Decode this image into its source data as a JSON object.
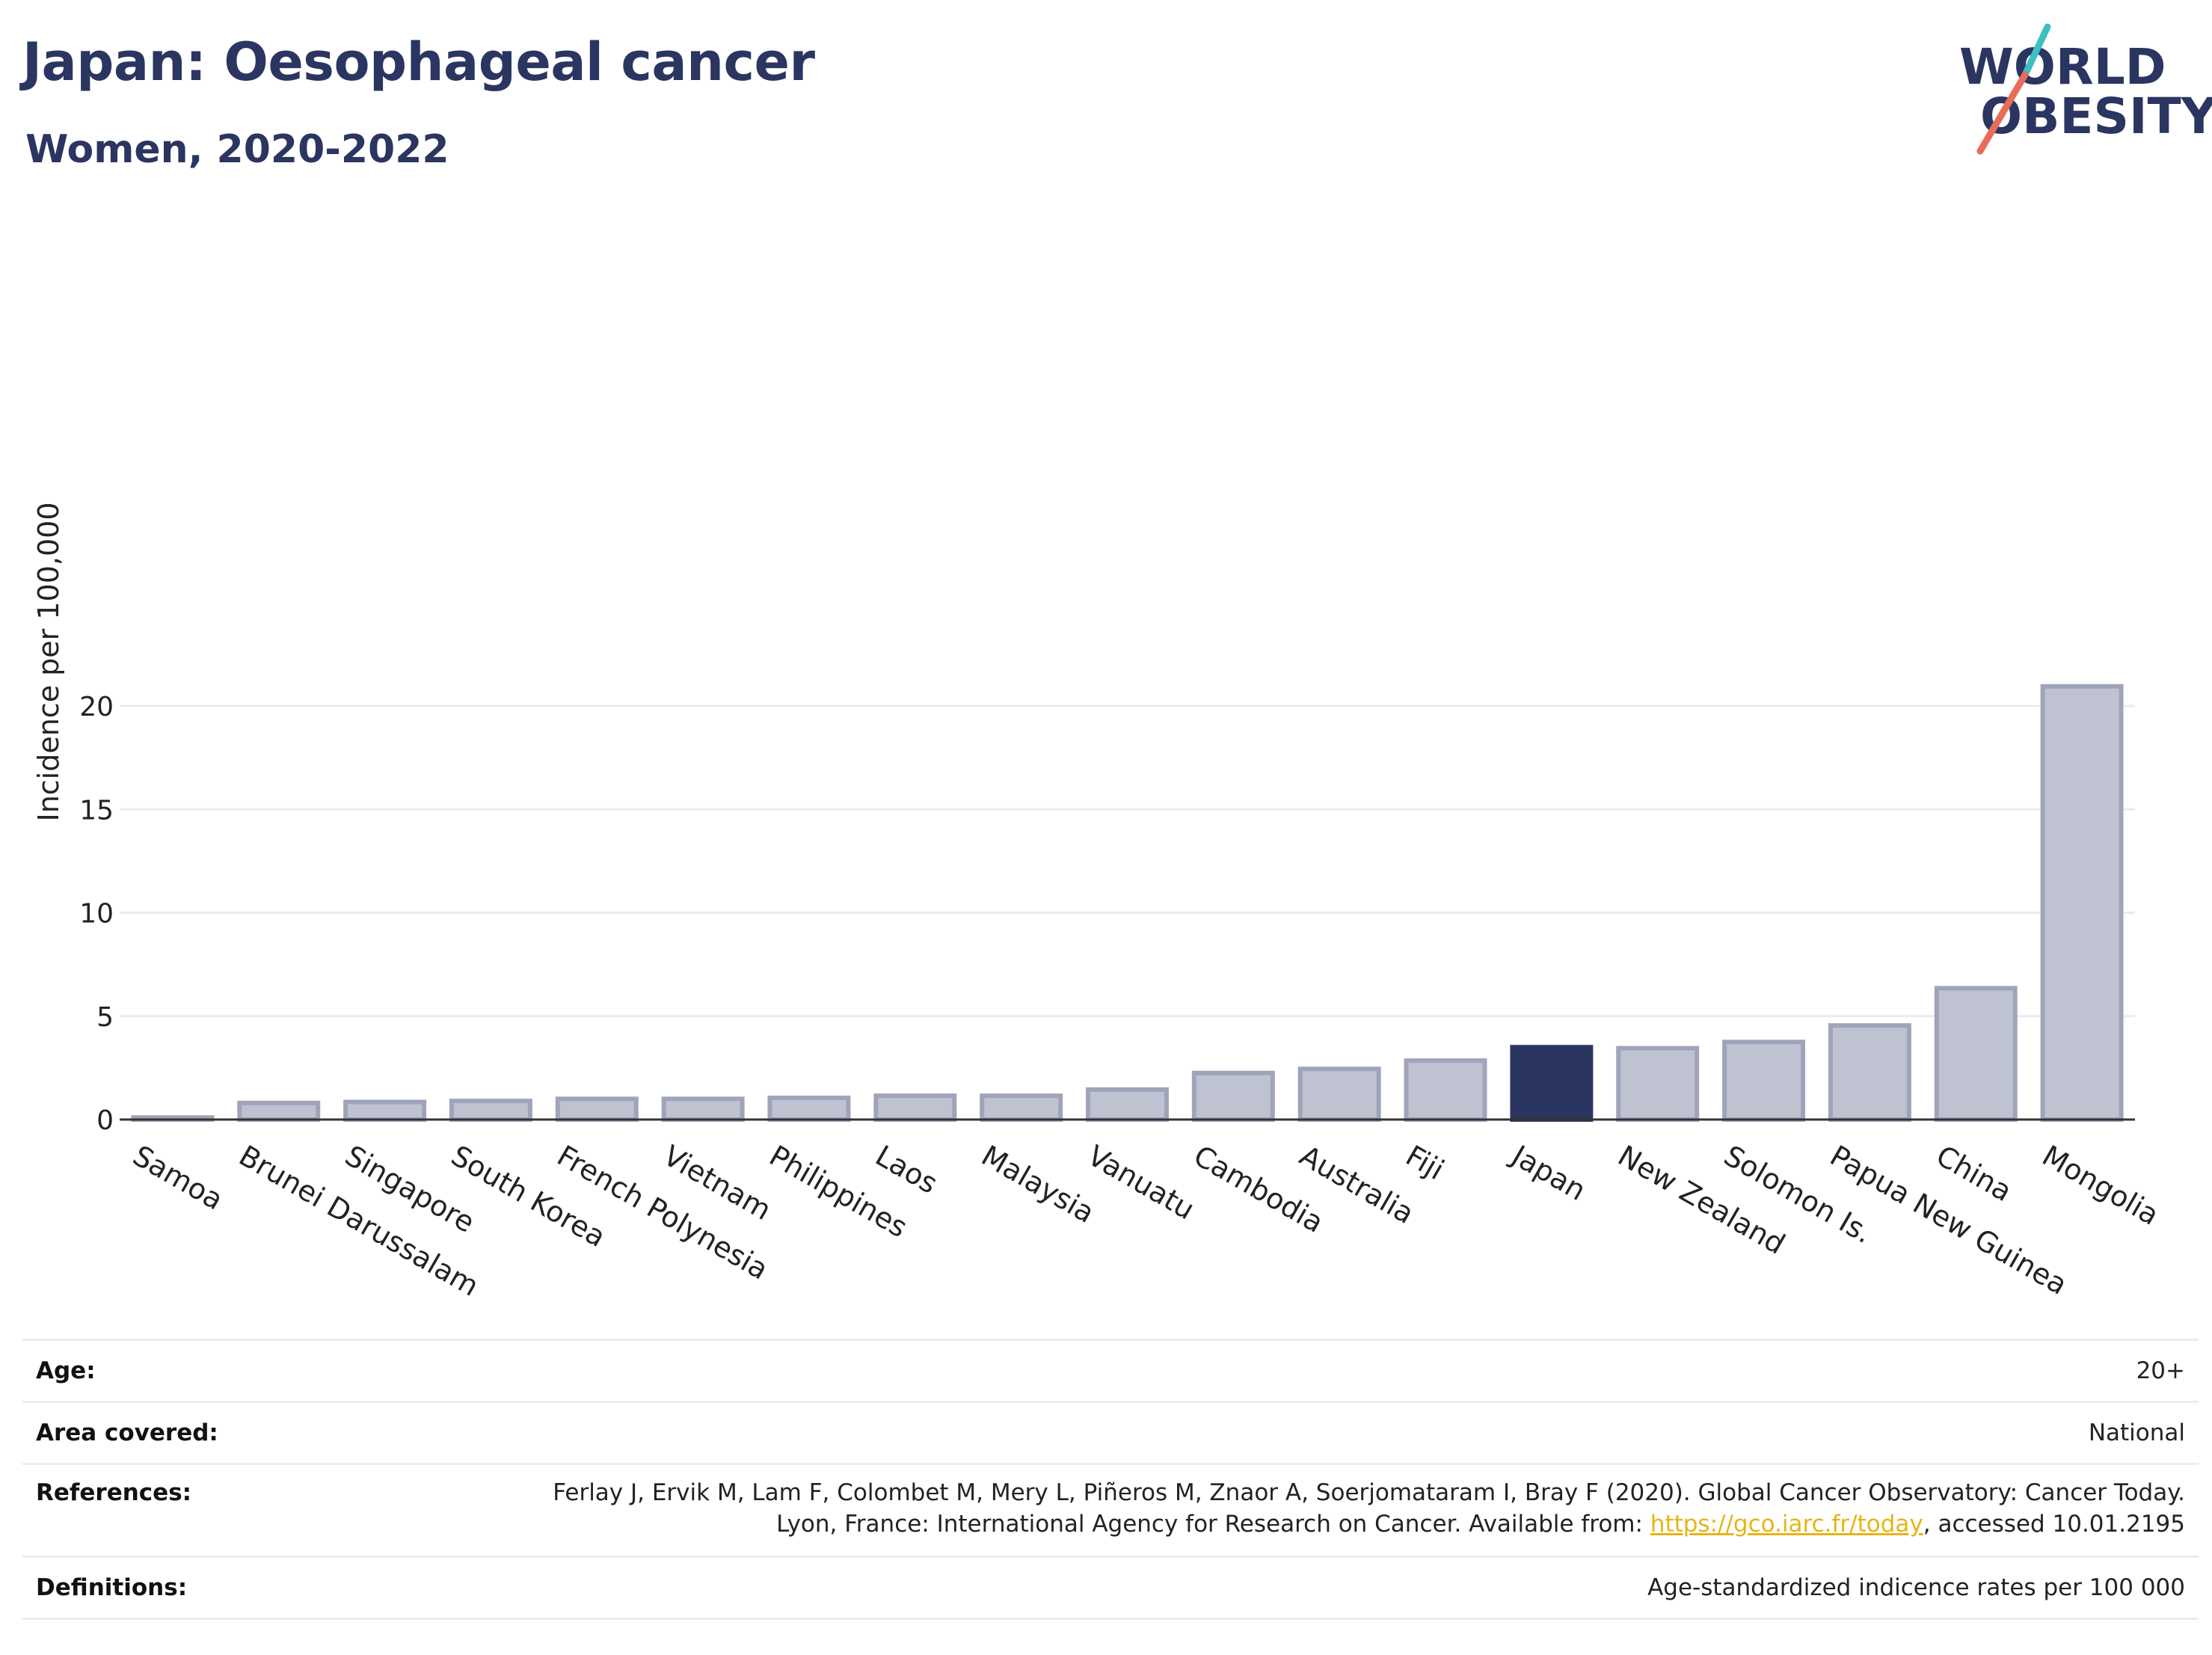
{
  "header": {
    "title": "Japan: Oesophageal cancer",
    "subtitle": "Women, 2020-2022"
  },
  "logo": {
    "line1": "WORLD",
    "line2": "OBESITY"
  },
  "chart_data": {
    "type": "bar",
    "ylabel": "Incidence per 100,000",
    "xlabel": "",
    "ylim": [
      0,
      22
    ],
    "yticks": [
      0,
      5,
      10,
      15,
      20
    ],
    "grid": true,
    "highlight": "Japan",
    "categories": [
      "Samoa",
      "Brunei Darussalam",
      "Singapore",
      "South Korea",
      "French Polynesia",
      "Vietnam",
      "Philippines",
      "Laos",
      "Malaysia",
      "Vanuatu",
      "Cambodia",
      "Australia",
      "Fiji",
      "Japan",
      "New Zealand",
      "Solomon Is.",
      "Papua New Guinea",
      "China",
      "Mongolia"
    ],
    "values": [
      0.1,
      0.8,
      0.85,
      0.9,
      1.0,
      1.0,
      1.05,
      1.15,
      1.15,
      1.45,
      2.25,
      2.45,
      2.85,
      3.5,
      3.45,
      3.75,
      4.55,
      6.35,
      20.95
    ],
    "colors": {
      "bar": "#bfc2d0",
      "bar_edge": "#9fa4ba",
      "highlight": "#2b3561",
      "grid": "#e8ecf0",
      "axis": "#333333"
    }
  },
  "meta": [
    {
      "label": "Age:",
      "value": "20+"
    },
    {
      "label": "Area covered:",
      "value": "National"
    },
    {
      "label": "References:",
      "value_pre": "Ferlay J, Ervik M, Lam F, Colombet M, Mery L, Piñeros M, Znaor A, Soerjomataram I, Bray F (2020). Global Cancer Observatory: Cancer Today. Lyon, France: International Agency for Research on Cancer. Available from: ",
      "link": "https://gco.iarc.fr/today",
      "value_post": ", accessed 10.01.2195"
    },
    {
      "label": "Definitions:",
      "value": "Age-standardized indicence rates per 100 000"
    }
  ]
}
